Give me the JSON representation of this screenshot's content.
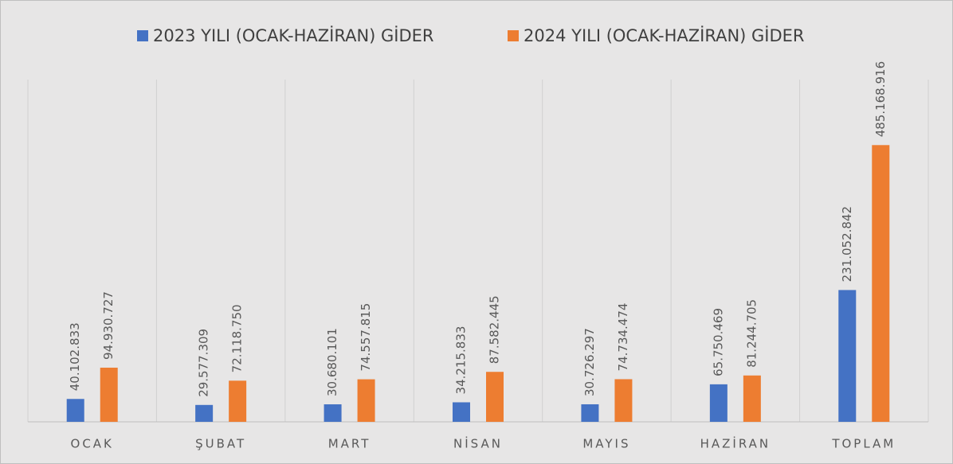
{
  "chart_data": {
    "type": "bar",
    "categories": [
      "OCAK",
      "ŞUBAT",
      "MART",
      "NİSAN",
      "MAYIS",
      "HAZİRAN",
      "TOPLAM"
    ],
    "series": [
      {
        "name": "2023 YILI (OCAK-HAZİRAN) GİDER",
        "color": "#4472c4",
        "values": [
          40102833,
          29577309,
          30680101,
          34215833,
          30726297,
          65750469,
          231052842
        ],
        "value_labels": [
          "40.102.833",
          "29.577.309",
          "30.680.101",
          "34.215.833",
          "30.726.297",
          "65.750.469",
          "231.052.842"
        ]
      },
      {
        "name": "2024 YILI (OCAK-HAZİRAN) GİDER",
        "color": "#ed7d31",
        "values": [
          94930727,
          72118750,
          74557815,
          87582445,
          74734474,
          81244705,
          485168916
        ],
        "value_labels": [
          "94.930.727",
          "72.118.750",
          "74.557.815",
          "87.582.445",
          "74.734.474",
          "81.244.705",
          "485.168.916"
        ]
      }
    ],
    "ylim": [
      0,
      600000000
    ],
    "legend": "top"
  }
}
